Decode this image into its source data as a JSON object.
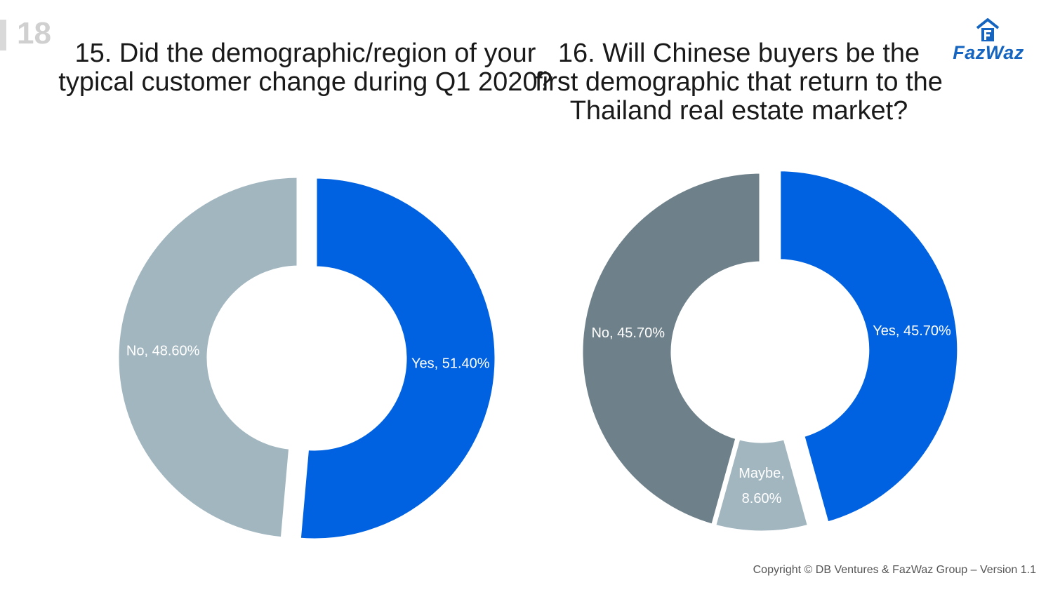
{
  "page_number": "18",
  "logo": {
    "text": "FazWaz",
    "icon": "building-flag-icon",
    "color": "#1565c0"
  },
  "footer": {
    "copyright": "Copyright © DB Ventures & FazWaz Group – Version 1.1"
  },
  "chart_data": [
    {
      "type": "pie",
      "variant": "donut",
      "title": "15. Did the demographic/region of your typical customer change during Q1 2020?",
      "categories": [
        "Yes",
        "No"
      ],
      "values": [
        51.4,
        48.6
      ],
      "labels": [
        [
          "Yes, 51.40%"
        ],
        [
          "No, 48.60%"
        ]
      ],
      "colors": [
        "#0062e0",
        "#a2b6c0"
      ],
      "exploded": "Yes",
      "legend": "none"
    },
    {
      "type": "pie",
      "variant": "donut",
      "title": "16. Will Chinese buyers be the first demographic that return to the Thailand real estate market?",
      "categories": [
        "Yes",
        "Maybe",
        "No"
      ],
      "values": [
        45.7,
        8.6,
        45.7
      ],
      "labels": [
        [
          "Yes, 45.70%"
        ],
        [
          "Maybe,",
          "8.60%"
        ],
        [
          "No, 45.70%"
        ]
      ],
      "colors": [
        "#0062e0",
        "#a2b6c0",
        "#6e8089"
      ],
      "exploded": "Yes",
      "legend": "none"
    }
  ]
}
